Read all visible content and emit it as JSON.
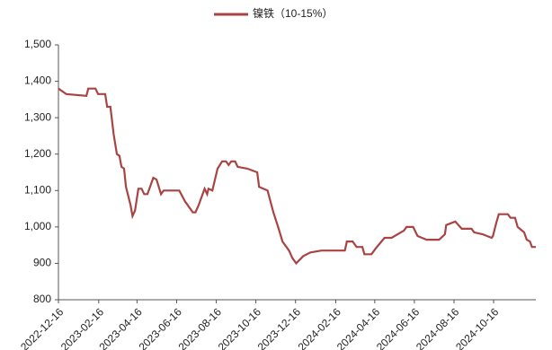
{
  "chart_data": {
    "type": "line",
    "series": [
      {
        "name": "镍铁（10-15%）",
        "color": "#a84444",
        "x": [
          "2022-12-16",
          "2022-12-28",
          "2023-01-28",
          "2023-01-31",
          "2023-02-11",
          "2023-02-15",
          "2023-02-26",
          "2023-03-01",
          "2023-03-06",
          "2023-03-11",
          "2023-03-16",
          "2023-03-20",
          "2023-03-23",
          "2023-03-27",
          "2023-03-30",
          "2023-04-06",
          "2023-04-09",
          "2023-04-13",
          "2023-04-18",
          "2023-04-23",
          "2023-04-27",
          "2023-05-02",
          "2023-05-11",
          "2023-05-16",
          "2023-05-23",
          "2023-05-27",
          "2023-06-20",
          "2023-06-29",
          "2023-07-11",
          "2023-07-15",
          "2023-07-20",
          "2023-07-29",
          "2023-08-02",
          "2023-08-04",
          "2023-08-10",
          "2023-08-18",
          "2023-08-25",
          "2023-08-31",
          "2023-09-04",
          "2023-09-08",
          "2023-09-14",
          "2023-09-18",
          "2023-10-03",
          "2023-10-18",
          "2023-10-21",
          "2023-11-03",
          "2023-11-12",
          "2023-11-21",
          "2023-11-26",
          "2023-12-06",
          "2023-12-11",
          "2023-12-17",
          "2023-12-28",
          "2024-01-08",
          "2024-01-25",
          "2024-03-01",
          "2024-03-04",
          "2024-03-13",
          "2024-03-19",
          "2024-03-28",
          "2024-03-31",
          "2024-04-11",
          "2024-04-17",
          "2024-05-01",
          "2024-05-12",
          "2024-05-31",
          "2024-06-04",
          "2024-06-14",
          "2024-06-21",
          "2024-07-05",
          "2024-07-24",
          "2024-08-02",
          "2024-08-04",
          "2024-08-18",
          "2024-08-28",
          "2024-09-12",
          "2024-09-16",
          "2024-09-29",
          "2024-10-13",
          "2024-10-15",
          "2024-10-20",
          "2024-10-24",
          "2024-11-07",
          "2024-11-11",
          "2024-11-18",
          "2024-11-22",
          "2024-12-02",
          "2024-12-06",
          "2024-12-11",
          "2024-12-14",
          "2024-12-20"
        ],
        "values": [
          1380,
          1365,
          1360,
          1380,
          1380,
          1365,
          1365,
          1330,
          1330,
          1255,
          1200,
          1195,
          1165,
          1160,
          1110,
          1060,
          1030,
          1045,
          1105,
          1105,
          1090,
          1090,
          1135,
          1130,
          1090,
          1100,
          1100,
          1070,
          1040,
          1040,
          1060,
          1105,
          1090,
          1105,
          1100,
          1160,
          1180,
          1180,
          1170,
          1180,
          1180,
          1165,
          1160,
          1150,
          1110,
          1100,
          1040,
          990,
          960,
          935,
          915,
          900,
          920,
          930,
          935,
          935,
          960,
          960,
          945,
          945,
          925,
          925,
          940,
          970,
          970,
          990,
          1000,
          1000,
          975,
          965,
          965,
          980,
          1005,
          1015,
          995,
          995,
          985,
          980,
          970,
          975,
          1010,
          1035,
          1035,
          1025,
          1025,
          1000,
          985,
          965,
          960,
          945,
          945
        ]
      }
    ],
    "xlim": [
      "2022-12-16",
      "2024-12-20"
    ],
    "xticks": [
      "2022-12-16",
      "2023-02-16",
      "2023-04-16",
      "2023-06-16",
      "2023-08-16",
      "2023-10-16",
      "2023-12-16",
      "2024-02-16",
      "2024-04-16",
      "2024-06-16",
      "2024-08-16",
      "2024-10-16"
    ],
    "ylim": [
      800,
      1500
    ],
    "yticks": [
      800,
      900,
      {
        "value": 1000,
        "label": "1,000"
      },
      {
        "value": 1100,
        "label": "1,100"
      },
      {
        "value": 1200,
        "label": "1,200"
      },
      {
        "value": 1300,
        "label": "1,300"
      },
      {
        "value": 1400,
        "label": "1,400"
      },
      {
        "value": 1500,
        "label": "1,500"
      }
    ],
    "grid": false,
    "legend": "top"
  }
}
